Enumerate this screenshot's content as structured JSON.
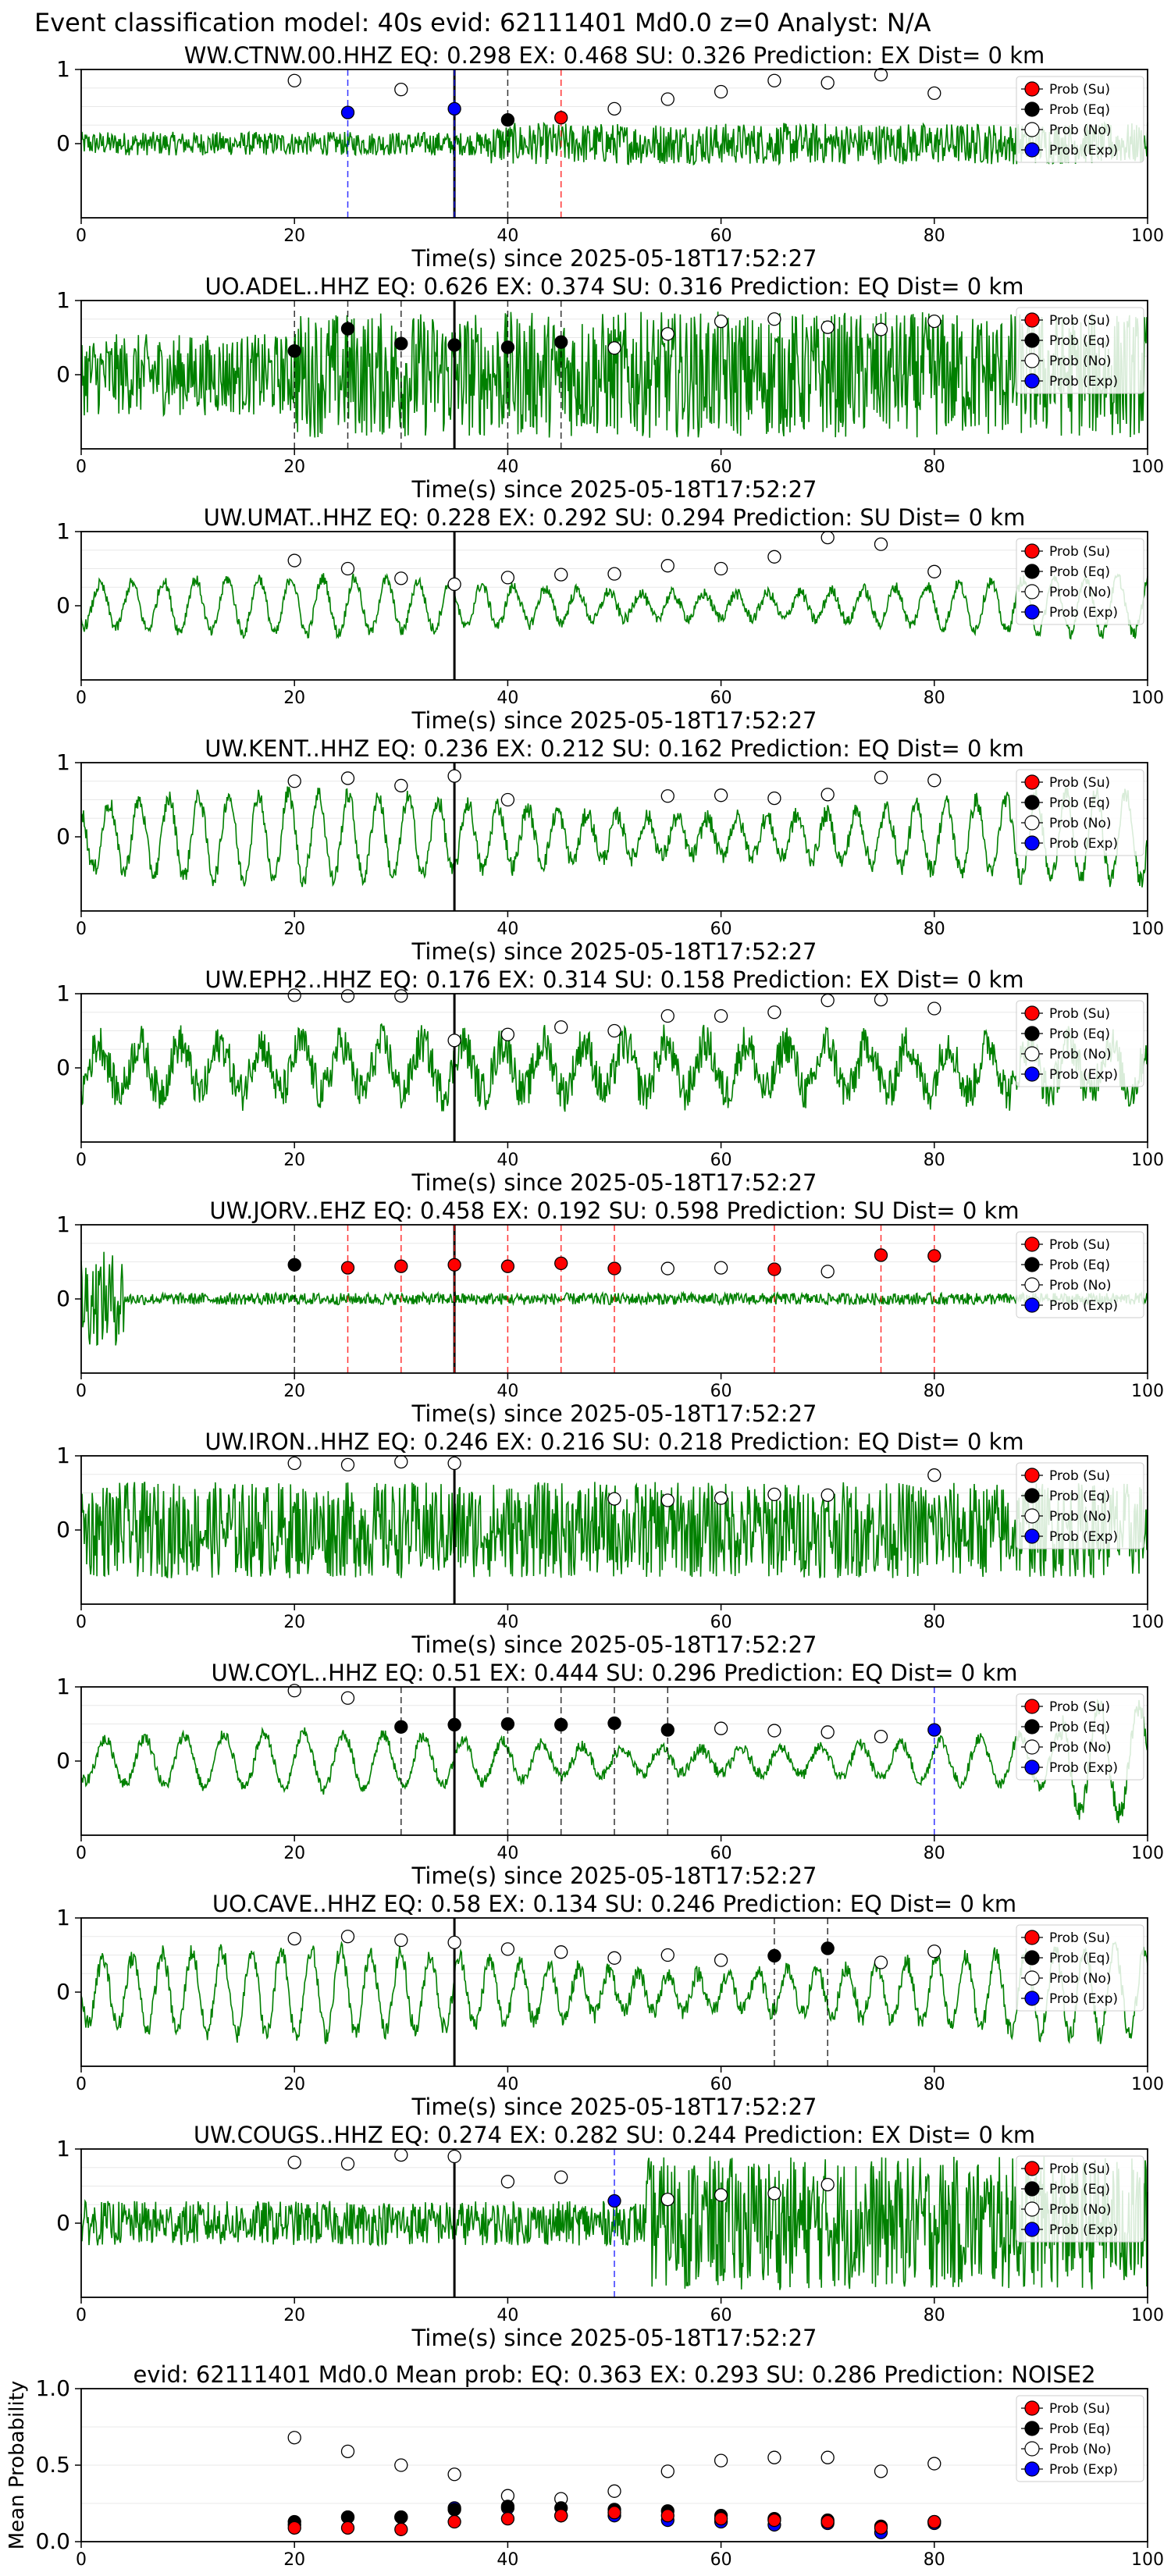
{
  "figure_title": "Event classification model: 40s evid: 62111401 Md0.0 z=0 Analyst: N/A",
  "legend_labels": [
    "Prob (Su)",
    "Prob (Eq)",
    "Prob (No)",
    "Prob (Exp)"
  ],
  "colors": {
    "su": "#ff0000",
    "eq": "#000000",
    "no": "#ffffff",
    "exp": "#0000ff",
    "wave": "#008000"
  },
  "chart_data": [
    {
      "type": "line",
      "title": "WW.CTNW.00.HHZ   EQ: 0.298   EX: 0.468   SU: 0.326   Prediction: EX    Dist= 0 km",
      "xlabel": "Time(s) since 2025-05-18T17:52:27",
      "ylabel": "",
      "xlim": [
        0,
        100
      ],
      "ylim": [
        -1,
        1
      ],
      "xticks": [
        0,
        20,
        40,
        60,
        80,
        100
      ],
      "yticks": [
        0,
        1
      ],
      "style": "bursty",
      "amp": 0.16,
      "signal_onset": 38,
      "signal_amp": 0.28,
      "points": [
        {
          "x": 20,
          "y": 0.85,
          "cls": "No"
        },
        {
          "x": 25,
          "y": 0.42,
          "cls": "Exp"
        },
        {
          "x": 30,
          "y": 0.73,
          "cls": "No"
        },
        {
          "x": 35,
          "y": 0.47,
          "cls": "Exp"
        },
        {
          "x": 40,
          "y": 0.32,
          "cls": "Eq"
        },
        {
          "x": 45,
          "y": 0.35,
          "cls": "Su"
        },
        {
          "x": 50,
          "y": 0.47,
          "cls": "No"
        },
        {
          "x": 55,
          "y": 0.6,
          "cls": "No"
        },
        {
          "x": 60,
          "y": 0.7,
          "cls": "No"
        },
        {
          "x": 65,
          "y": 0.85,
          "cls": "No"
        },
        {
          "x": 70,
          "y": 0.82,
          "cls": "No"
        },
        {
          "x": 75,
          "y": 0.93,
          "cls": "No"
        },
        {
          "x": 80,
          "y": 0.68,
          "cls": "No"
        }
      ]
    },
    {
      "type": "line",
      "title": "UO.ADEL..HHZ   EQ: 0.626  EX: 0.374  SU: 0.316   Prediction: EQ    Dist= 0 km",
      "xlabel": "Time(s) since 2025-05-18T17:52:27",
      "ylabel": "",
      "xlim": [
        0,
        100
      ],
      "ylim": [
        -1,
        1
      ],
      "xticks": [
        0,
        20,
        40,
        60,
        80,
        100
      ],
      "yticks": [
        0,
        1
      ],
      "style": "dense",
      "amp": 0.55,
      "signal_onset": 20,
      "signal_amp": 0.85,
      "points": [
        {
          "x": 20,
          "y": 0.32,
          "cls": "Eq"
        },
        {
          "x": 25,
          "y": 0.62,
          "cls": "Eq"
        },
        {
          "x": 30,
          "y": 0.42,
          "cls": "Eq"
        },
        {
          "x": 35,
          "y": 0.4,
          "cls": "Eq"
        },
        {
          "x": 40,
          "y": 0.37,
          "cls": "Eq"
        },
        {
          "x": 45,
          "y": 0.44,
          "cls": "Eq"
        },
        {
          "x": 50,
          "y": 0.36,
          "cls": "No"
        },
        {
          "x": 55,
          "y": 0.55,
          "cls": "No"
        },
        {
          "x": 60,
          "y": 0.72,
          "cls": "No"
        },
        {
          "x": 65,
          "y": 0.75,
          "cls": "No"
        },
        {
          "x": 70,
          "y": 0.64,
          "cls": "No"
        },
        {
          "x": 75,
          "y": 0.61,
          "cls": "No"
        },
        {
          "x": 80,
          "y": 0.72,
          "cls": "No"
        }
      ]
    },
    {
      "type": "line",
      "title": "UW.UMAT..HHZ   EQ: 0.228  EX: 0.292  SU: 0.294   Prediction: SU    Dist= 0 km",
      "xlabel": "Time(s) since 2025-05-18T17:52:27",
      "ylabel": "",
      "xlim": [
        0,
        100
      ],
      "ylim": [
        -1,
        1
      ],
      "xticks": [
        0,
        20,
        40,
        60,
        80,
        100
      ],
      "yticks": [
        0,
        1
      ],
      "style": "oscill",
      "amp": 0.45,
      "signal_onset": 100,
      "signal_amp": 0.45,
      "points": [
        {
          "x": 20,
          "y": 0.61,
          "cls": "No"
        },
        {
          "x": 25,
          "y": 0.5,
          "cls": "No"
        },
        {
          "x": 30,
          "y": 0.37,
          "cls": "No"
        },
        {
          "x": 35,
          "y": 0.29,
          "cls": "No"
        },
        {
          "x": 40,
          "y": 0.38,
          "cls": "No"
        },
        {
          "x": 45,
          "y": 0.42,
          "cls": "No"
        },
        {
          "x": 50,
          "y": 0.43,
          "cls": "No"
        },
        {
          "x": 55,
          "y": 0.54,
          "cls": "No"
        },
        {
          "x": 60,
          "y": 0.5,
          "cls": "No"
        },
        {
          "x": 65,
          "y": 0.66,
          "cls": "No"
        },
        {
          "x": 70,
          "y": 0.92,
          "cls": "No"
        },
        {
          "x": 75,
          "y": 0.83,
          "cls": "No"
        },
        {
          "x": 80,
          "y": 0.46,
          "cls": "No"
        }
      ]
    },
    {
      "type": "line",
      "title": "UW.KENT..HHZ   EQ: 0.236  EX: 0.212  SU: 0.162   Prediction: EQ    Dist= 0 km",
      "xlabel": "Time(s) since 2025-05-18T17:52:27",
      "ylabel": "",
      "xlim": [
        0,
        100
      ],
      "ylim": [
        -1,
        1
      ],
      "xticks": [
        0,
        20,
        40,
        60,
        80,
        100
      ],
      "yticks": [
        0,
        1
      ],
      "style": "oscill",
      "amp": 0.7,
      "signal_onset": 100,
      "signal_amp": 0.7,
      "points": [
        {
          "x": 20,
          "y": 0.75,
          "cls": "No"
        },
        {
          "x": 25,
          "y": 0.79,
          "cls": "No"
        },
        {
          "x": 30,
          "y": 0.69,
          "cls": "No"
        },
        {
          "x": 35,
          "y": 0.82,
          "cls": "No"
        },
        {
          "x": 40,
          "y": 0.5,
          "cls": "No"
        },
        {
          "x": 55,
          "y": 0.55,
          "cls": "No"
        },
        {
          "x": 60,
          "y": 0.56,
          "cls": "No"
        },
        {
          "x": 65,
          "y": 0.52,
          "cls": "No"
        },
        {
          "x": 70,
          "y": 0.57,
          "cls": "No"
        },
        {
          "x": 75,
          "y": 0.8,
          "cls": "No"
        },
        {
          "x": 80,
          "y": 0.76,
          "cls": "No"
        }
      ]
    },
    {
      "type": "line",
      "title": "UW.EPH2..HHZ   EQ: 0.176  EX: 0.314  SU: 0.158   Prediction: EX    Dist= 0 km",
      "xlabel": "Time(s) since 2025-05-18T17:52:27",
      "ylabel": "",
      "xlim": [
        0,
        100
      ],
      "ylim": [
        -1,
        1
      ],
      "xticks": [
        0,
        20,
        40,
        60,
        80,
        100
      ],
      "yticks": [
        0,
        1
      ],
      "style": "mixed",
      "amp": 0.6,
      "signal_onset": 100,
      "signal_amp": 0.6,
      "points": [
        {
          "x": 20,
          "y": 0.98,
          "cls": "No"
        },
        {
          "x": 25,
          "y": 0.97,
          "cls": "No"
        },
        {
          "x": 30,
          "y": 0.97,
          "cls": "No"
        },
        {
          "x": 35,
          "y": 0.37,
          "cls": "No"
        },
        {
          "x": 40,
          "y": 0.45,
          "cls": "No"
        },
        {
          "x": 45,
          "y": 0.55,
          "cls": "No"
        },
        {
          "x": 50,
          "y": 0.5,
          "cls": "No"
        },
        {
          "x": 55,
          "y": 0.7,
          "cls": "No"
        },
        {
          "x": 60,
          "y": 0.7,
          "cls": "No"
        },
        {
          "x": 65,
          "y": 0.75,
          "cls": "No"
        },
        {
          "x": 70,
          "y": 0.91,
          "cls": "No"
        },
        {
          "x": 75,
          "y": 0.92,
          "cls": "No"
        },
        {
          "x": 80,
          "y": 0.8,
          "cls": "No"
        }
      ]
    },
    {
      "type": "line",
      "title": "UW.JORV..EHZ   EQ: 0.458  EX: 0.192  SU: 0.598   Prediction: SU    Dist= 0 km",
      "xlabel": "Time(s) since 2025-05-18T17:52:27",
      "ylabel": "",
      "xlim": [
        0,
        100
      ],
      "ylim": [
        -1,
        1
      ],
      "xticks": [
        0,
        20,
        40,
        60,
        80,
        100
      ],
      "yticks": [
        0,
        1
      ],
      "style": "quiet",
      "amp": 0.08,
      "signal_onset": 100,
      "signal_amp": 0.08,
      "points": [
        {
          "x": 20,
          "y": 0.46,
          "cls": "Eq"
        },
        {
          "x": 25,
          "y": 0.42,
          "cls": "Su"
        },
        {
          "x": 30,
          "y": 0.44,
          "cls": "Su"
        },
        {
          "x": 35,
          "y": 0.46,
          "cls": "Su"
        },
        {
          "x": 40,
          "y": 0.44,
          "cls": "Su"
        },
        {
          "x": 45,
          "y": 0.48,
          "cls": "Su"
        },
        {
          "x": 50,
          "y": 0.41,
          "cls": "Su"
        },
        {
          "x": 55,
          "y": 0.41,
          "cls": "No"
        },
        {
          "x": 60,
          "y": 0.42,
          "cls": "No"
        },
        {
          "x": 65,
          "y": 0.4,
          "cls": "Su"
        },
        {
          "x": 70,
          "y": 0.37,
          "cls": "No"
        },
        {
          "x": 75,
          "y": 0.59,
          "cls": "Su"
        },
        {
          "x": 80,
          "y": 0.58,
          "cls": "Su"
        }
      ]
    },
    {
      "type": "line",
      "title": "UW.IRON..HHZ   EQ: 0.246  EX: 0.216  SU: 0.218   Prediction: EQ    Dist= 0 km",
      "xlabel": "Time(s) since 2025-05-18T17:52:27",
      "ylabel": "",
      "xlim": [
        0,
        100
      ],
      "ylim": [
        -1,
        1
      ],
      "xticks": [
        0,
        20,
        40,
        60,
        80,
        100
      ],
      "yticks": [
        0,
        1
      ],
      "style": "dense",
      "amp": 0.65,
      "signal_onset": 100,
      "signal_amp": 0.65,
      "points": [
        {
          "x": 20,
          "y": 0.9,
          "cls": "No"
        },
        {
          "x": 25,
          "y": 0.88,
          "cls": "No"
        },
        {
          "x": 30,
          "y": 0.92,
          "cls": "No"
        },
        {
          "x": 35,
          "y": 0.9,
          "cls": "No"
        },
        {
          "x": 50,
          "y": 0.42,
          "cls": "No"
        },
        {
          "x": 55,
          "y": 0.4,
          "cls": "No"
        },
        {
          "x": 60,
          "y": 0.43,
          "cls": "No"
        },
        {
          "x": 65,
          "y": 0.48,
          "cls": "No"
        },
        {
          "x": 70,
          "y": 0.47,
          "cls": "No"
        },
        {
          "x": 80,
          "y": 0.74,
          "cls": "No"
        }
      ]
    },
    {
      "type": "line",
      "title": "UW.COYL..HHZ   EQ: 0.51  EX: 0.444  SU: 0.296   Prediction: EQ    Dist= 0 km",
      "xlabel": "Time(s) since 2025-05-18T17:52:27",
      "ylabel": "",
      "xlim": [
        0,
        100
      ],
      "ylim": [
        -1,
        1
      ],
      "xticks": [
        0,
        20,
        40,
        60,
        80,
        100
      ],
      "yticks": [
        0,
        1
      ],
      "style": "oscill",
      "amp": 0.45,
      "signal_onset": 92,
      "signal_amp": 0.85,
      "points": [
        {
          "x": 20,
          "y": 0.95,
          "cls": "No"
        },
        {
          "x": 25,
          "y": 0.85,
          "cls": "No"
        },
        {
          "x": 30,
          "y": 0.46,
          "cls": "Eq"
        },
        {
          "x": 35,
          "y": 0.49,
          "cls": "Eq"
        },
        {
          "x": 40,
          "y": 0.5,
          "cls": "Eq"
        },
        {
          "x": 45,
          "y": 0.49,
          "cls": "Eq"
        },
        {
          "x": 50,
          "y": 0.51,
          "cls": "Eq"
        },
        {
          "x": 55,
          "y": 0.42,
          "cls": "Eq"
        },
        {
          "x": 60,
          "y": 0.44,
          "cls": "No"
        },
        {
          "x": 65,
          "y": 0.41,
          "cls": "No"
        },
        {
          "x": 70,
          "y": 0.39,
          "cls": "No"
        },
        {
          "x": 75,
          "y": 0.33,
          "cls": "No"
        },
        {
          "x": 80,
          "y": 0.42,
          "cls": "Exp"
        }
      ]
    },
    {
      "type": "line",
      "title": "UO.CAVE..HHZ   EQ: 0.58  EX: 0.134  SU: 0.246   Prediction: EQ    Dist= 0 km",
      "xlabel": "Time(s) since 2025-05-18T17:52:27",
      "ylabel": "",
      "xlim": [
        0,
        100
      ],
      "ylim": [
        -1,
        1
      ],
      "xticks": [
        0,
        20,
        40,
        60,
        80,
        100
      ],
      "yticks": [
        0,
        1
      ],
      "style": "oscill",
      "amp": 0.7,
      "signal_onset": 100,
      "signal_amp": 0.7,
      "points": [
        {
          "x": 20,
          "y": 0.72,
          "cls": "No"
        },
        {
          "x": 25,
          "y": 0.75,
          "cls": "No"
        },
        {
          "x": 30,
          "y": 0.7,
          "cls": "No"
        },
        {
          "x": 35,
          "y": 0.67,
          "cls": "No"
        },
        {
          "x": 40,
          "y": 0.58,
          "cls": "No"
        },
        {
          "x": 45,
          "y": 0.54,
          "cls": "No"
        },
        {
          "x": 50,
          "y": 0.46,
          "cls": "No"
        },
        {
          "x": 55,
          "y": 0.5,
          "cls": "No"
        },
        {
          "x": 60,
          "y": 0.43,
          "cls": "No"
        },
        {
          "x": 65,
          "y": 0.49,
          "cls": "Eq"
        },
        {
          "x": 70,
          "y": 0.59,
          "cls": "Eq"
        },
        {
          "x": 75,
          "y": 0.4,
          "cls": "No"
        },
        {
          "x": 80,
          "y": 0.55,
          "cls": "No"
        }
      ]
    },
    {
      "type": "line",
      "title": "UW.COUGS..HHZ   EQ: 0.274  EX: 0.282  SU: 0.244   Prediction: EX    Dist= 0 km",
      "xlabel": "Time(s) since 2025-05-18T17:52:27",
      "ylabel": "",
      "xlim": [
        0,
        100
      ],
      "ylim": [
        -1,
        1
      ],
      "xticks": [
        0,
        20,
        40,
        60,
        80,
        100
      ],
      "yticks": [
        0,
        1
      ],
      "style": "bursty",
      "amp": 0.3,
      "signal_onset": 53,
      "signal_amp": 0.9,
      "points": [
        {
          "x": 20,
          "y": 0.82,
          "cls": "No"
        },
        {
          "x": 25,
          "y": 0.8,
          "cls": "No"
        },
        {
          "x": 30,
          "y": 0.92,
          "cls": "No"
        },
        {
          "x": 35,
          "y": 0.9,
          "cls": "No"
        },
        {
          "x": 40,
          "y": 0.56,
          "cls": "No"
        },
        {
          "x": 45,
          "y": 0.62,
          "cls": "No"
        },
        {
          "x": 50,
          "y": 0.3,
          "cls": "Exp"
        },
        {
          "x": 55,
          "y": 0.32,
          "cls": "No"
        },
        {
          "x": 60,
          "y": 0.38,
          "cls": "No"
        },
        {
          "x": 65,
          "y": 0.4,
          "cls": "No"
        },
        {
          "x": 70,
          "y": 0.52,
          "cls": "No"
        }
      ]
    },
    {
      "type": "scatter",
      "title": "evid: 62111401  Md0.0   Mean prob:   EQ: 0.363  EX: 0.293  SU: 0.286   Prediction: NOISE2",
      "xlabel": "",
      "ylabel": "Mean Probability",
      "xlim": [
        0,
        100
      ],
      "ylim": [
        0,
        1
      ],
      "xticks": [
        0,
        20,
        40,
        60,
        80,
        100
      ],
      "yticks": [
        0.0,
        0.5,
        1.0
      ],
      "x": [
        20,
        25,
        30,
        35,
        40,
        45,
        50,
        55,
        60,
        65,
        70,
        75,
        80
      ],
      "series": [
        {
          "name": "Prob (No)",
          "key": "no",
          "values": [
            0.68,
            0.59,
            0.5,
            0.44,
            0.3,
            0.28,
            0.33,
            0.46,
            0.53,
            0.55,
            0.55,
            0.46,
            0.51
          ]
        },
        {
          "name": "Prob (Exp)",
          "key": "exp",
          "values": [
            0.11,
            0.16,
            0.16,
            0.22,
            0.22,
            0.17,
            0.17,
            0.14,
            0.13,
            0.11,
            0.12,
            0.06,
            0.12
          ]
        },
        {
          "name": "Prob (Eq)",
          "key": "eq",
          "values": [
            0.13,
            0.16,
            0.16,
            0.21,
            0.23,
            0.22,
            0.21,
            0.2,
            0.17,
            0.15,
            0.14,
            0.1,
            0.13
          ]
        },
        {
          "name": "Prob (Su)",
          "key": "su",
          "values": [
            0.09,
            0.09,
            0.08,
            0.13,
            0.15,
            0.17,
            0.19,
            0.17,
            0.15,
            0.14,
            0.13,
            0.09,
            0.13
          ]
        }
      ]
    }
  ]
}
